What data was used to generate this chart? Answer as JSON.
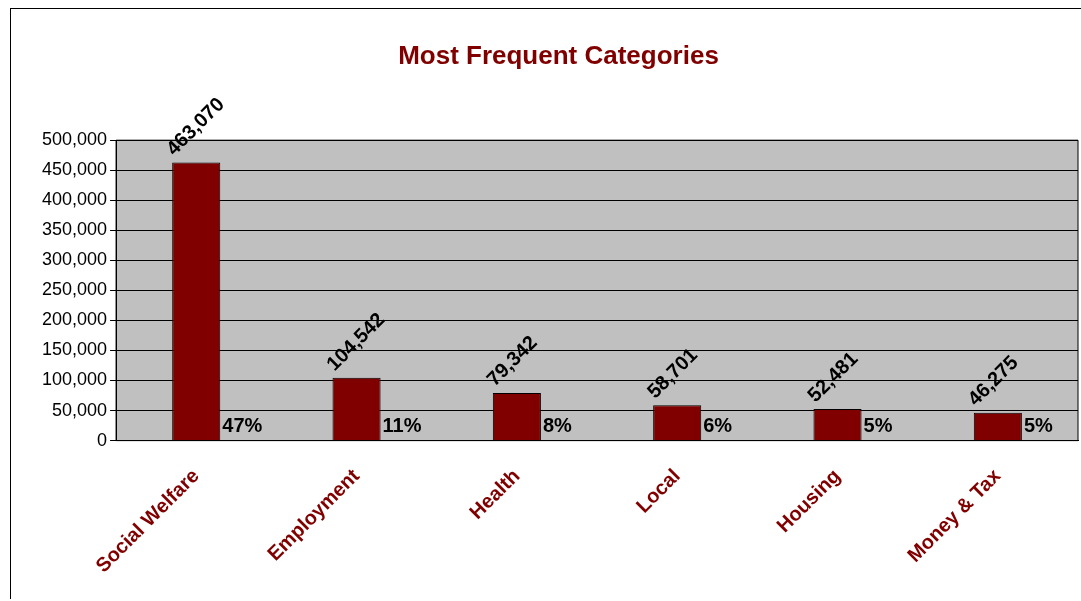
{
  "chart_data": {
    "type": "bar",
    "title": "Most Frequent Categories",
    "categories": [
      "Social Welfare",
      "Employment",
      "Health",
      "Local",
      "Housing",
      "Money & Tax"
    ],
    "values": [
      463070,
      104542,
      79342,
      58701,
      52481,
      46275
    ],
    "color": "#800000",
    "value_labels": [
      "463,070",
      "104,542",
      "79,342",
      "58,701",
      "52,481",
      "46,275"
    ],
    "ylim": [
      0,
      500000
    ],
    "yticks": [
      0,
      {
        "value": 50000,
        "label": "50,000"
      },
      {
        "value": 100000,
        "label": "100,000"
      },
      {
        "value": 150000,
        "label": "150,000"
      },
      {
        "value": 200000,
        "label": "200,000"
      },
      {
        "value": 250000,
        "label": "250,000"
      },
      {
        "value": 300000,
        "label": "300,000"
      },
      {
        "value": 350000,
        "label": "350,000"
      },
      {
        "value": 400000,
        "label": "400,000"
      },
      {
        "value": 450000,
        "label": "450,000"
      },
      {
        "value": 500000,
        "label": "500,000"
      }
    ],
    "grid": "y",
    "annotations": [
      "47%",
      "11%",
      "8%",
      "6%",
      "5%",
      "5%"
    ]
  }
}
